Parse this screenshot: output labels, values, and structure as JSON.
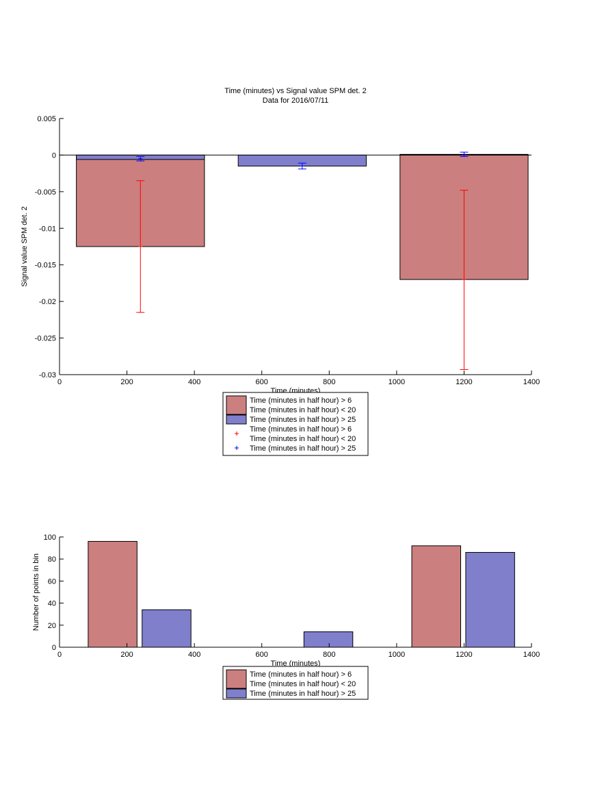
{
  "chart_data": [
    {
      "type": "bar",
      "title": "Time (minutes) vs Signal value SPM det. 2",
      "subtitle": "Data for 2016/07/11",
      "xlabel": "Time (minutes)",
      "ylabel": "Signal value SPM det. 2",
      "xlim": [
        0,
        1400
      ],
      "ylim": [
        -0.03,
        0.005
      ],
      "xticks": [
        "0",
        "200",
        "400",
        "600",
        "800",
        "1000",
        "1200",
        "1400"
      ],
      "yticks": [
        "0.005",
        "0",
        "-0.005",
        "-0.01",
        "-0.015",
        "-0.02",
        "-0.025",
        "-0.03"
      ],
      "series": [
        {
          "name": "Time (minutes in half hour) > 6\nTime (minutes in half hour) < 20",
          "color": "#cc7f7f",
          "bars": [
            {
              "x0": 50,
              "x1": 430,
              "value": -0.0125
            },
            {
              "x0": 1010,
              "x1": 1390,
              "value": -0.017
            }
          ]
        },
        {
          "name": "Time (minutes in half hour) > 25",
          "color": "#7f7fcc",
          "bars": [
            {
              "x0": 50,
              "x1": 430,
              "value": -0.0006
            },
            {
              "x0": 530,
              "x1": 910,
              "value": -0.0015
            },
            {
              "x0": 1010,
              "x1": 1390,
              "value": 0.0001
            }
          ]
        }
      ],
      "errorbars": [
        {
          "name": "Time (minutes in half hour) > 6\nTime (minutes in half hour) < 20",
          "color": "#ff0000",
          "marker": "+",
          "points": [
            {
              "x": 240,
              "y": -0.0125,
              "low": -0.0215,
              "high": -0.0035
            },
            {
              "x": 1200,
              "y": -0.017,
              "low": -0.0293,
              "high": -0.0048
            }
          ]
        },
        {
          "name": "Time (minutes in half hour) > 25",
          "color": "#0000ff",
          "marker": "+",
          "points": [
            {
              "x": 240,
              "y": -0.0005,
              "low": -0.0008,
              "high": -0.0002
            },
            {
              "x": 720,
              "y": -0.0015,
              "low": -0.0019,
              "high": -0.0011
            },
            {
              "x": 1200,
              "y": 0.0001,
              "low": -0.0002,
              "high": 0.0004
            }
          ]
        }
      ],
      "legend": {
        "position": "below",
        "entries": [
          {
            "kind": "patch",
            "color": "#cc7f7f",
            "lines": [
              "Time (minutes in half hour) > 6",
              "Time (minutes in half hour) < 20"
            ]
          },
          {
            "kind": "patch",
            "color": "#7f7fcc",
            "lines": [
              "Time (minutes in half hour) > 25"
            ]
          },
          {
            "kind": "marker",
            "color": "#ff0000",
            "lines": [
              "Time (minutes in half hour) > 6",
              "Time (minutes in half hour) < 20"
            ]
          },
          {
            "kind": "marker",
            "color": "#0000ff",
            "lines": [
              "Time (minutes in half hour) > 25"
            ]
          }
        ]
      }
    },
    {
      "type": "bar",
      "title": "",
      "xlabel": "Time (minutes)",
      "ylabel": "Number of points in bin",
      "xlim": [
        0,
        1400
      ],
      "ylim": [
        0,
        100
      ],
      "xticks": [
        "0",
        "200",
        "400",
        "600",
        "800",
        "1000",
        "1200",
        "1400"
      ],
      "yticks": [
        "100",
        "80",
        "60",
        "40",
        "20",
        "0"
      ],
      "series": [
        {
          "name": "Time (minutes in half hour) > 6\nTime (minutes in half hour) < 20",
          "color": "#cc7f7f",
          "bars": [
            {
              "x0": 85,
              "x1": 230,
              "value": 96
            },
            {
              "x0": 1045,
              "x1": 1190,
              "value": 92
            }
          ]
        },
        {
          "name": "Time (minutes in half hour) > 25",
          "color": "#7f7fcc",
          "bars": [
            {
              "x0": 245,
              "x1": 390,
              "value": 34
            },
            {
              "x0": 725,
              "x1": 870,
              "value": 14
            },
            {
              "x0": 1205,
              "x1": 1350,
              "value": 86
            }
          ]
        }
      ],
      "legend": {
        "position": "below",
        "entries": [
          {
            "kind": "patch",
            "color": "#cc7f7f",
            "lines": [
              "Time (minutes in half hour) > 6",
              "Time (minutes in half hour) < 20"
            ]
          },
          {
            "kind": "patch",
            "color": "#7f7fcc",
            "lines": [
              "Time (minutes in half hour) > 25"
            ]
          }
        ]
      }
    }
  ]
}
